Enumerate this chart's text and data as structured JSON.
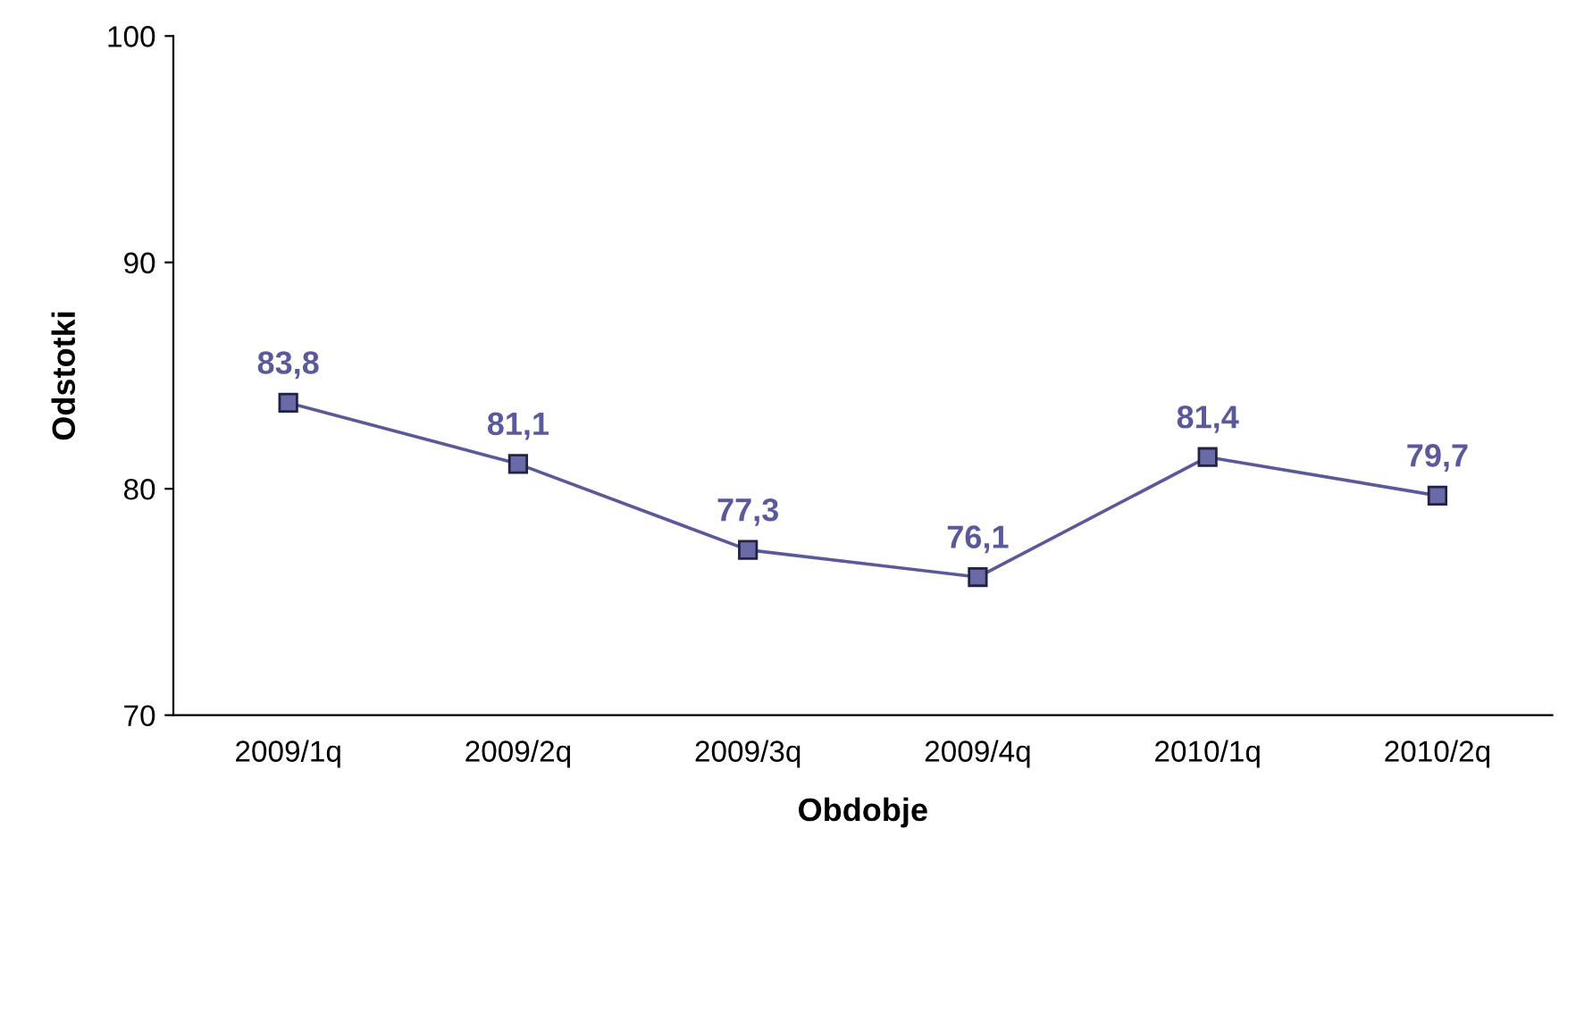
{
  "chart_data": {
    "type": "line",
    "xlabel": "Obdobje",
    "ylabel": "Odstotki",
    "categories": [
      "2009/1q",
      "2009/2q",
      "2009/3q",
      "2009/4q",
      "2010/1q",
      "2010/2q"
    ],
    "series": [
      {
        "color": "#5a5a9a",
        "values": [
          83.8,
          81.1,
          77.3,
          76.1,
          81.4,
          79.7
        ],
        "value_labels": [
          "83,8",
          "81,1",
          "77,3",
          "76,1",
          "81,4",
          "79,7"
        ]
      }
    ],
    "ylim": [
      70,
      100
    ],
    "yticks": [
      70,
      80,
      90,
      100
    ],
    "grid": false,
    "marker": "square",
    "line_style": "solid"
  }
}
